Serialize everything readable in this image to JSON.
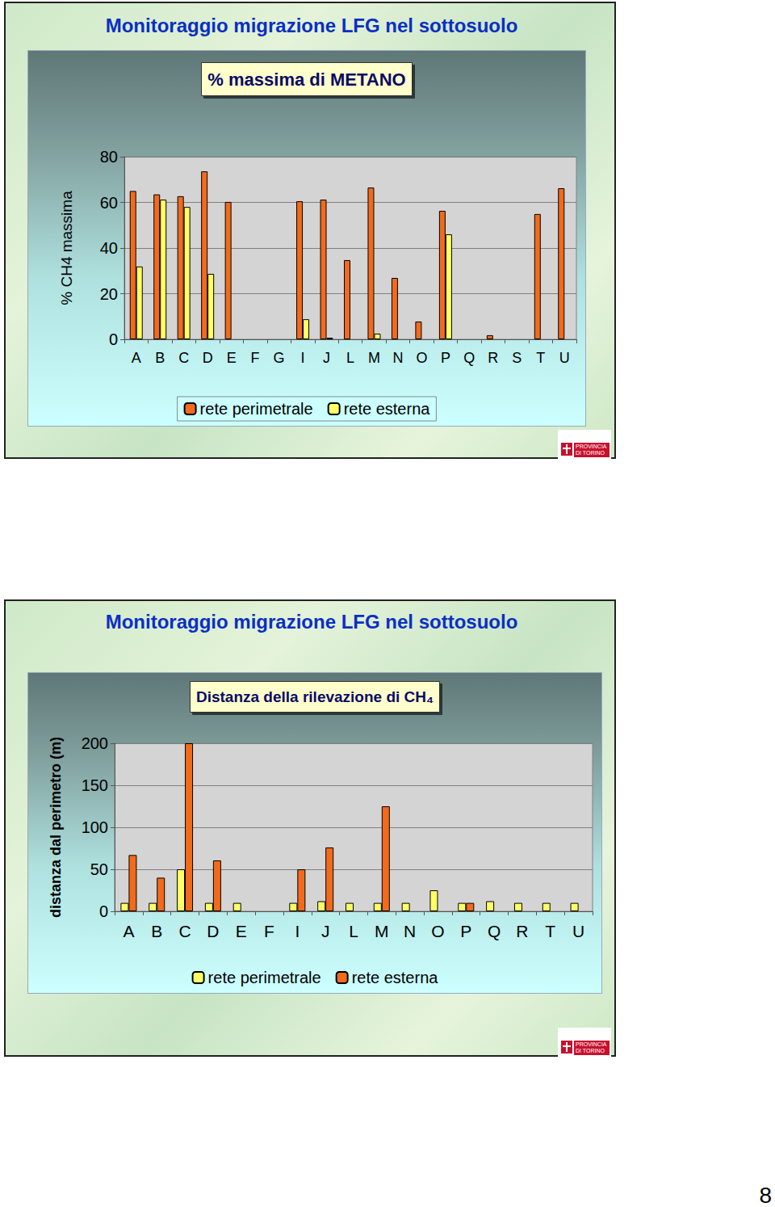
{
  "page_number": 8,
  "logo": [
    "PROVINCIA",
    "DI TORINO"
  ],
  "chart_data": [
    {
      "type": "bar",
      "title": "Monitoraggio migrazione LFG nel sottosuolo",
      "subtitle": "% massima di METANO",
      "y_label": "% CH4 massima",
      "categories": [
        "A",
        "B",
        "C",
        "D",
        "E",
        "F",
        "G",
        "I",
        "J",
        "L",
        "M",
        "N",
        "O",
        "P",
        "Q",
        "R",
        "S",
        "T",
        "U"
      ],
      "series": [
        {
          "name": "rete perimetrale",
          "color": "#f26a1b",
          "values": [
            65,
            63.5,
            62.7,
            73.6,
            60.2,
            null,
            null,
            60.5,
            61.2,
            34.7,
            66.5,
            26.9,
            7.8,
            56.3,
            null,
            1.8,
            null,
            54.9,
            66.2
          ]
        },
        {
          "name": "rete esterna",
          "color": "#ffff66",
          "values": [
            31.9,
            61.2,
            58,
            28.7,
            null,
            null,
            null,
            8.8,
            0.7,
            null,
            2.5,
            null,
            null,
            46,
            null,
            null,
            null,
            null,
            null
          ]
        }
      ],
      "ylim": [
        0,
        80
      ],
      "yticks": [
        0,
        20,
        40,
        60,
        80
      ],
      "grid": true,
      "legend": "bottom"
    },
    {
      "type": "bar",
      "title": "Monitoraggio migrazione LFG nel sottosuolo",
      "subtitle": "Distanza della rilevazione di CH₄",
      "y_label": "distanza dal perimetro (m)",
      "categories": [
        "A",
        "B",
        "C",
        "D",
        "E",
        "F",
        "I",
        "J",
        "L",
        "M",
        "N",
        "O",
        "P",
        "Q",
        "R",
        "T",
        "U"
      ],
      "series": [
        {
          "name": "rete perimetrale",
          "color": "#ffff66",
          "values": [
            10,
            10,
            50,
            10,
            10,
            null,
            10,
            12,
            10,
            10,
            10,
            25,
            10,
            12,
            10,
            10,
            10
          ]
        },
        {
          "name": "rete esterna",
          "color": "#f26a1b",
          "values": [
            67,
            40,
            200,
            60.6,
            null,
            null,
            50,
            76,
            null,
            125,
            null,
            null,
            10,
            null,
            null,
            null,
            null
          ]
        }
      ],
      "ylim": [
        0,
        200
      ],
      "yticks": [
        0,
        50,
        100,
        150,
        200
      ],
      "grid": true,
      "legend": "bottom"
    }
  ]
}
